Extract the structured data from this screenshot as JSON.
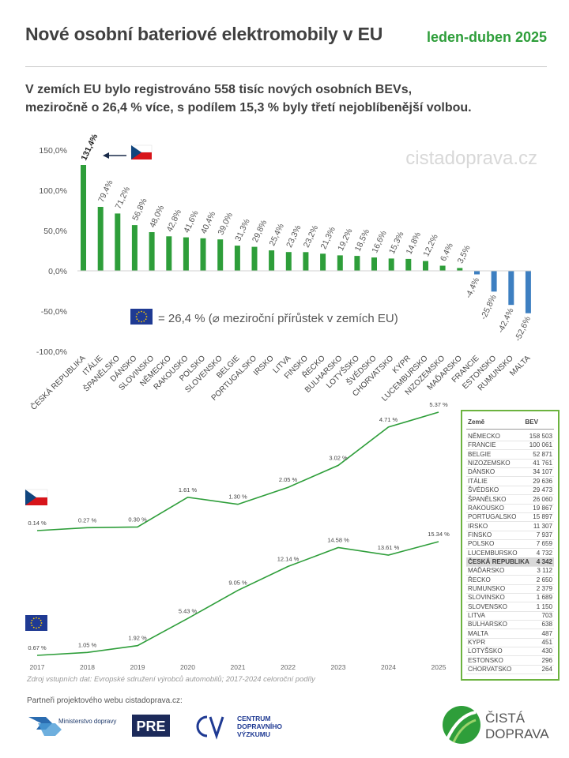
{
  "header": {
    "title": "Nové osobní bateriové elektromobily v EU",
    "period": "leden-duben 2025",
    "subtitle_line1": "V zemích EU bylo registrováno 558 tisíc nových osobních BEVs,",
    "subtitle_line2": "meziročně o 26,4 % více, s podílem 15,3 % byly třetí nejoblíbenější volbou."
  },
  "watermark": "cistadoprava.cz",
  "eu_note": "= 26,4 % (⌀ meziroční přírůstek v zemích EU)",
  "colors": {
    "positive": "#2e9e3a",
    "negative": "#3d7fc1",
    "line": "#2e9e3a",
    "title": "#404040",
    "accent": "#2e9e3a"
  },
  "chart_data": [
    {
      "type": "bar",
      "ylim": [
        -100,
        150
      ],
      "y_ticks": [
        150,
        100,
        50,
        0,
        -50,
        -100
      ],
      "y_tick_labels": [
        "150,0%",
        "100,0%",
        "50,0%",
        "0,0%",
        "-50,0%",
        "-100,0%"
      ],
      "grid": false,
      "categories": [
        "ČESKÁ REPUBLIKA",
        "ITÁLIE",
        "ŠPANĚLSKO",
        "DÁNSKO",
        "SLOVINSKO",
        "NĚMECKO",
        "RAKOUSKO",
        "POLSKO",
        "SLOVENSKO",
        "BELGIE",
        "PORTUGALSKO",
        "IRSKO",
        "LITVA",
        "FINSKO",
        "ŘECKO",
        "BULHARSKO",
        "LOTYŠSKO",
        "ŠVÉDSKO",
        "CHORVATSKO",
        "KYPR",
        "LUCEMBURSKO",
        "NIZOZEMSKO",
        "MAĎARSKO",
        "FRANCIE",
        "ESTONSKO",
        "RUMUNSKO",
        "MALTA"
      ],
      "values": [
        131.4,
        79.4,
        71.2,
        56.8,
        48.0,
        42.8,
        41.6,
        40.4,
        39.0,
        31.3,
        29.8,
        25.4,
        23.3,
        23.2,
        21.3,
        19.2,
        18.5,
        16.6,
        15.3,
        14.8,
        12.2,
        6.4,
        3.5,
        -4.4,
        -25.8,
        -42.4,
        -52.6
      ],
      "labels": [
        "131,4%",
        "79,4%",
        "71,2%",
        "56,8%",
        "48,0%",
        "42,8%",
        "41,6%",
        "40,4%",
        "39,0%",
        "31,3%",
        "29,8%",
        "25,4%",
        "23,3%",
        "23,2%",
        "21,3%",
        "19,2%",
        "18,5%",
        "16,6%",
        "15,3%",
        "14,8%",
        "12,2%",
        "6,4%",
        "3,5%",
        "-4,4%",
        "-25,8%",
        "-42,4%",
        "-52,6%"
      ]
    },
    {
      "type": "line",
      "x": [
        2017,
        2018,
        2019,
        2020,
        2021,
        2022,
        2023,
        2024,
        2025
      ],
      "x_labels": [
        "2017",
        "2018",
        "2019",
        "2020",
        "2021",
        "2022",
        "2023",
        "2024",
        "2025"
      ],
      "series": [
        {
          "values": [
            0.14,
            0.27,
            0.3,
            1.61,
            1.3,
            2.05,
            3.02,
            4.71,
            5.37
          ],
          "labels": [
            "0.14 %",
            "0.27 %",
            "0.30 %",
            "1.61 %",
            "1.30 %",
            "2.05 %",
            "3.02 %",
            "4.71 %",
            "5.37 %"
          ]
        },
        {
          "values": [
            0.67,
            1.05,
            1.92,
            5.43,
            9.05,
            12.14,
            14.58,
            13.61,
            15.34
          ],
          "labels": [
            "0.67 %",
            "1.05 %",
            "1.92 %",
            "5.43 %",
            "9.05 %",
            "12.14 %",
            "14.58 %",
            "13.61 %",
            "15.34 %"
          ]
        }
      ]
    },
    {
      "type": "table",
      "columns": [
        "Země",
        "BEV"
      ],
      "rows": [
        [
          "NĚMECKO",
          "158 503"
        ],
        [
          "FRANCIE",
          "100 061"
        ],
        [
          "BELGIE",
          "52 871"
        ],
        [
          "NIZOZEMSKO",
          "41 761"
        ],
        [
          "DÁNSKO",
          "34 107"
        ],
        [
          "ITÁLIE",
          "29 636"
        ],
        [
          "ŠVÉDSKO",
          "29 473"
        ],
        [
          "ŠPANĚLSKO",
          "26 060"
        ],
        [
          "RAKOUSKO",
          "19 867"
        ],
        [
          "PORTUGALSKO",
          "15 897"
        ],
        [
          "IRSKO",
          "11 307"
        ],
        [
          "FINSKO",
          "7 937"
        ],
        [
          "POLSKO",
          "7 659"
        ],
        [
          "LUCEMBURSKO",
          "4 732"
        ],
        [
          "ČESKÁ REPUBLIKA",
          "4 342"
        ],
        [
          "MAĎARSKO",
          "3 112"
        ],
        [
          "ŘECKO",
          "2 650"
        ],
        [
          "RUMUNSKO",
          "2 379"
        ],
        [
          "SLOVINSKO",
          "1 689"
        ],
        [
          "SLOVENSKO",
          "1 150"
        ],
        [
          "LITVA",
          "703"
        ],
        [
          "BULHARSKO",
          "638"
        ],
        [
          "MALTA",
          "487"
        ],
        [
          "KYPR",
          "451"
        ],
        [
          "LOTYŠSKO",
          "430"
        ],
        [
          "ESTONSKO",
          "296"
        ],
        [
          "CHORVATSKO",
          "264"
        ]
      ],
      "highlight_row": 14
    }
  ],
  "footer": {
    "source": "Zdroj vstupních dat: Evropské sdružení výrobců automobilů; 2017-2024 celoroční podíly",
    "partners": "Partneři projektového webu cistadoprava.cz:",
    "logo_ministry": "Ministerstvo dopravy",
    "logo_pre": "PRE",
    "logo_cdv_1": "CENTRUM",
    "logo_cdv_2": "DOPRAVNÍHO",
    "logo_cdv_3": "VÝZKUMU",
    "logo_cista_1": "ČISTÁ",
    "logo_cista_2": "DOPRAVA"
  }
}
